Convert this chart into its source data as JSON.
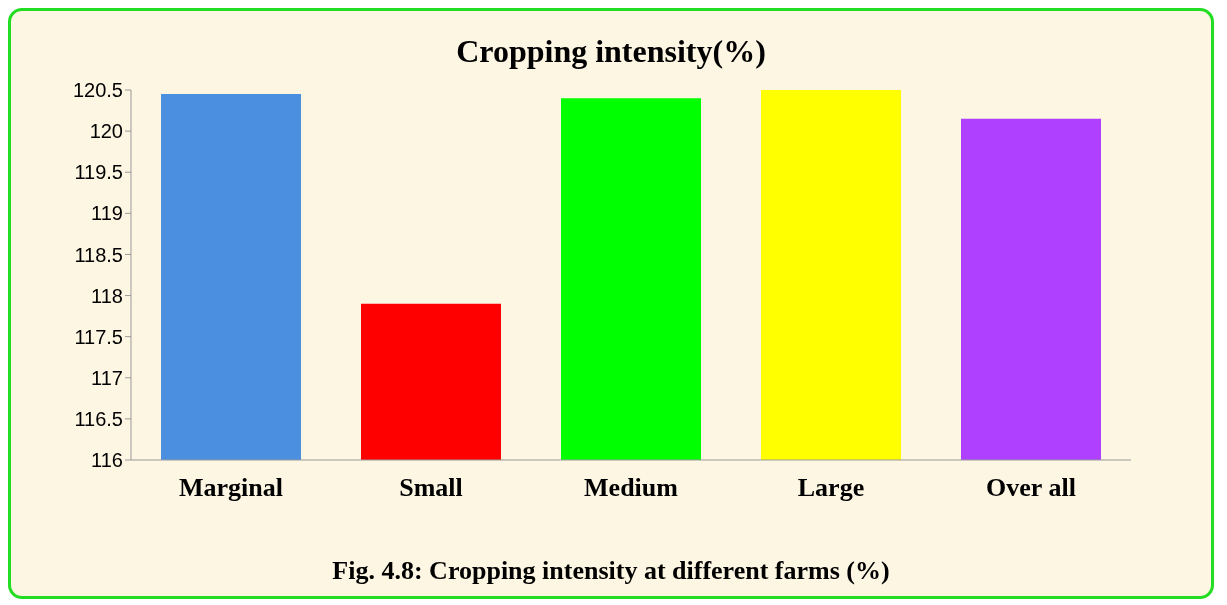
{
  "chart_data": {
    "type": "bar",
    "title": "Cropping intensity(%)",
    "categories": [
      "Marginal",
      "Small",
      "Medium",
      "Large",
      "Over all"
    ],
    "values": [
      120.45,
      117.9,
      120.4,
      120.5,
      120.15
    ],
    "colors": [
      "#4a8fe0",
      "#ff0000",
      "#00ff00",
      "#ffff00",
      "#b040ff"
    ],
    "ylim": [
      116,
      120.5
    ],
    "yticks": [
      116,
      116.5,
      117,
      117.5,
      118,
      118.5,
      119,
      119.5,
      120,
      120.5
    ],
    "grid": false,
    "annotations": [
      "Fig. 4.8: Cropping intensity at different farms (%)"
    ]
  }
}
